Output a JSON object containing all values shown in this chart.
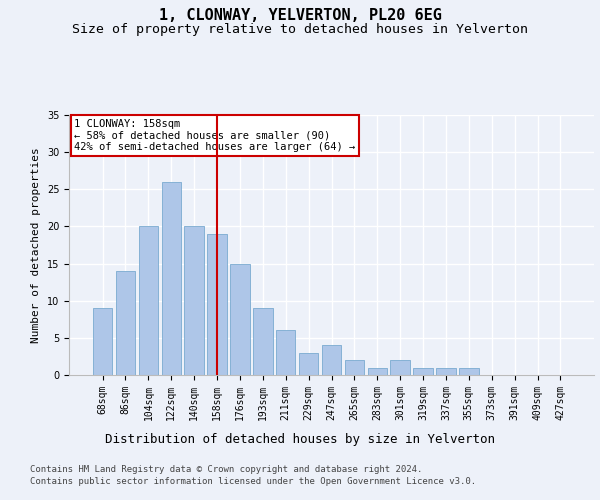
{
  "title": "1, CLONWAY, YELVERTON, PL20 6EG",
  "subtitle": "Size of property relative to detached houses in Yelverton",
  "xlabel": "Distribution of detached houses by size in Yelverton",
  "ylabel": "Number of detached properties",
  "categories": [
    "68sqm",
    "86sqm",
    "104sqm",
    "122sqm",
    "140sqm",
    "158sqm",
    "176sqm",
    "193sqm",
    "211sqm",
    "229sqm",
    "247sqm",
    "265sqm",
    "283sqm",
    "301sqm",
    "319sqm",
    "337sqm",
    "355sqm",
    "373sqm",
    "391sqm",
    "409sqm",
    "427sqm"
  ],
  "values": [
    9,
    14,
    20,
    26,
    20,
    19,
    15,
    9,
    6,
    3,
    4,
    2,
    1,
    2,
    1,
    1,
    1,
    0,
    0,
    0,
    0
  ],
  "bar_color": "#aec6e8",
  "bar_edge_color": "#7aaad0",
  "property_line_x": 5,
  "property_line_color": "#cc0000",
  "annotation_text": "1 CLONWAY: 158sqm\n← 58% of detached houses are smaller (90)\n42% of semi-detached houses are larger (64) →",
  "annotation_box_color": "#cc0000",
  "ylim": [
    0,
    35
  ],
  "yticks": [
    0,
    5,
    10,
    15,
    20,
    25,
    30,
    35
  ],
  "footer1": "Contains HM Land Registry data © Crown copyright and database right 2024.",
  "footer2": "Contains public sector information licensed under the Open Government Licence v3.0.",
  "background_color": "#edf1f9",
  "plot_background": "#edf1f9",
  "grid_color": "#ffffff",
  "title_fontsize": 11,
  "subtitle_fontsize": 9.5,
  "xlabel_fontsize": 9,
  "ylabel_fontsize": 8,
  "footer_fontsize": 6.5,
  "tick_fontsize": 7,
  "annotation_fontsize": 7.5
}
